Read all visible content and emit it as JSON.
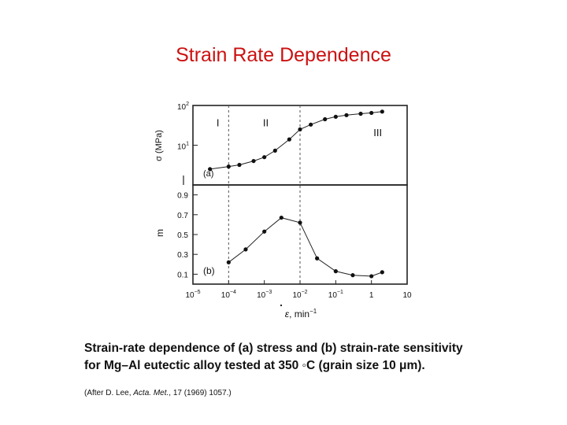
{
  "slide": {
    "title": "Strain Rate Dependence",
    "accent_color": "#cc1111",
    "caption_line1": "Strain-rate dependence of (a) stress and (b) strain-rate sensitivity",
    "caption_line2": "for Mg–Al eutectic alloy tested at 350 ◦C (grain size 10 μm).",
    "citation_prefix": "(After D. Lee, ",
    "citation_journal": "Acta. Met.",
    "citation_suffix": ", 17 (1969) 1057.)"
  },
  "chart_data": [
    {
      "id": "a",
      "type": "line",
      "panel_label": "(a)",
      "ylabel": "σ (MPa)",
      "yscale": "log",
      "ylim": [
        1,
        100
      ],
      "xscale": "log",
      "xlim": [
        1e-05,
        10
      ],
      "yticks": [
        {
          "value": 100,
          "base": "10",
          "exp": "2"
        },
        {
          "value": 10,
          "base": "10",
          "exp": "1"
        },
        {
          "value": 1,
          "base": "",
          "exp": ""
        }
      ],
      "region_labels": [
        {
          "text": "I",
          "x": 5e-05,
          "y": 30
        },
        {
          "text": "II",
          "x": 0.0011,
          "y": 30
        },
        {
          "text": "III",
          "x": 1.5,
          "y": 17
        }
      ],
      "series": [
        {
          "name": "stress",
          "x": [
            3e-05,
            0.0001,
            0.0002,
            0.0005,
            0.001,
            0.002,
            0.005,
            0.01,
            0.02,
            0.05,
            0.1,
            0.2,
            0.5,
            1,
            2
          ],
          "y": [
            2.5,
            2.9,
            3.2,
            4.0,
            5.0,
            7.3,
            14,
            25,
            33,
            45,
            52,
            57,
            62,
            65,
            70
          ]
        }
      ]
    },
    {
      "id": "b",
      "type": "line",
      "panel_label": "(b)",
      "ylabel": "m",
      "yscale": "linear",
      "ylim": [
        0,
        1.0
      ],
      "xscale": "log",
      "xlim": [
        1e-05,
        10
      ],
      "yticks": [
        {
          "value": 0.9,
          "label": "0.9"
        },
        {
          "value": 0.7,
          "label": "0.7"
        },
        {
          "value": 0.5,
          "label": "0.5"
        },
        {
          "value": 0.3,
          "label": "0.3"
        },
        {
          "value": 0.1,
          "label": "0.1"
        }
      ],
      "xticks": [
        {
          "value": 1e-05,
          "base": "10",
          "exp": "−5"
        },
        {
          "value": 0.0001,
          "base": "10",
          "exp": "−4"
        },
        {
          "value": 0.001,
          "base": "10",
          "exp": "−3"
        },
        {
          "value": 0.01,
          "base": "10",
          "exp": "−2"
        },
        {
          "value": 0.1,
          "base": "10",
          "exp": "−1"
        },
        {
          "value": 1,
          "base": "1",
          "exp": ""
        },
        {
          "value": 10,
          "base": "10",
          "exp": ""
        }
      ],
      "xlabel_symbol": "ε",
      "xlabel_rest": ", min",
      "xlabel_exp": "−1",
      "series": [
        {
          "name": "m",
          "x": [
            0.0001,
            0.0003,
            0.001,
            0.003,
            0.01,
            0.03,
            0.1,
            0.3,
            1,
            2
          ],
          "y": [
            0.22,
            0.35,
            0.53,
            0.67,
            0.62,
            0.26,
            0.13,
            0.09,
            0.08,
            0.12
          ]
        }
      ],
      "dividers_x": [
        0.0001,
        0.01
      ]
    }
  ]
}
